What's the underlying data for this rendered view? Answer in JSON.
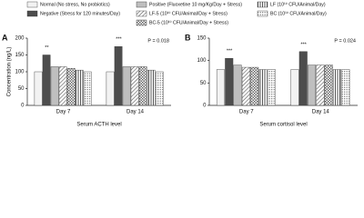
{
  "chart_data": [
    {
      "type": "bar",
      "panel": "A",
      "ylabel": "Concentration (ng/L)",
      "xlabel": "Serum ACTH level",
      "categories": [
        "Day 7",
        "Day 14"
      ],
      "ylim": [
        0,
        200
      ],
      "yticks": [
        0,
        50,
        100,
        150,
        200
      ],
      "annotations": [
        "**",
        "***",
        "P = 0.018"
      ],
      "series": [
        {
          "name": "Normal (No stress, No probiotics)",
          "color": "#f2f2f2",
          "pattern": "solid",
          "values": [
            100,
            100
          ]
        },
        {
          "name": "Negative (Stress for 120 minutes/Day)",
          "color": "#4d4d4d",
          "pattern": "solid",
          "values": [
            150,
            175
          ]
        },
        {
          "name": "Positive (Fluoxetine 10 mg/Kg/Day + Stress)",
          "color": "#bfbfbf",
          "pattern": "solid",
          "values": [
            115,
            115
          ]
        },
        {
          "name": "LF-5 (10¹⁰ CFU/Animal/Day + Stress)",
          "color": "#555555",
          "pattern": "hatch",
          "values": [
            115,
            115
          ]
        },
        {
          "name": "BC-5 (10¹⁰ CFU/Animal/Day + Stress)",
          "color": "#555555",
          "pattern": "check",
          "values": [
            110,
            115
          ]
        },
        {
          "name": "LF (10¹⁰ CFU/Animal/Day)",
          "color": "#555555",
          "pattern": "vstripe",
          "values": [
            105,
            105
          ]
        },
        {
          "name": "BC (10¹⁰ CFU/Animal/Day)",
          "color": "#555555",
          "pattern": "dots",
          "values": [
            100,
            100
          ]
        }
      ]
    },
    {
      "type": "bar",
      "panel": "B",
      "xlabel": "Serum cortisol level",
      "categories": [
        "Day 7",
        "Day 14"
      ],
      "ylim": [
        0,
        150
      ],
      "yticks": [
        0,
        50,
        100,
        150
      ],
      "annotations": [
        "***",
        "***",
        "P = 0.024"
      ],
      "series": [
        {
          "color": "#f2f2f2",
          "pattern": "solid",
          "values": [
            80,
            80
          ]
        },
        {
          "color": "#4d4d4d",
          "pattern": "solid",
          "values": [
            105,
            120
          ]
        },
        {
          "color": "#bfbfbf",
          "pattern": "solid",
          "values": [
            90,
            90
          ]
        },
        {
          "color": "#555555",
          "pattern": "hatch",
          "values": [
            85,
            90
          ]
        },
        {
          "color": "#555555",
          "pattern": "check",
          "values": [
            85,
            90
          ]
        },
        {
          "color": "#555555",
          "pattern": "vstripe",
          "values": [
            80,
            80
          ]
        },
        {
          "color": "#555555",
          "pattern": "dots",
          "values": [
            80,
            80
          ]
        }
      ]
    }
  ]
}
